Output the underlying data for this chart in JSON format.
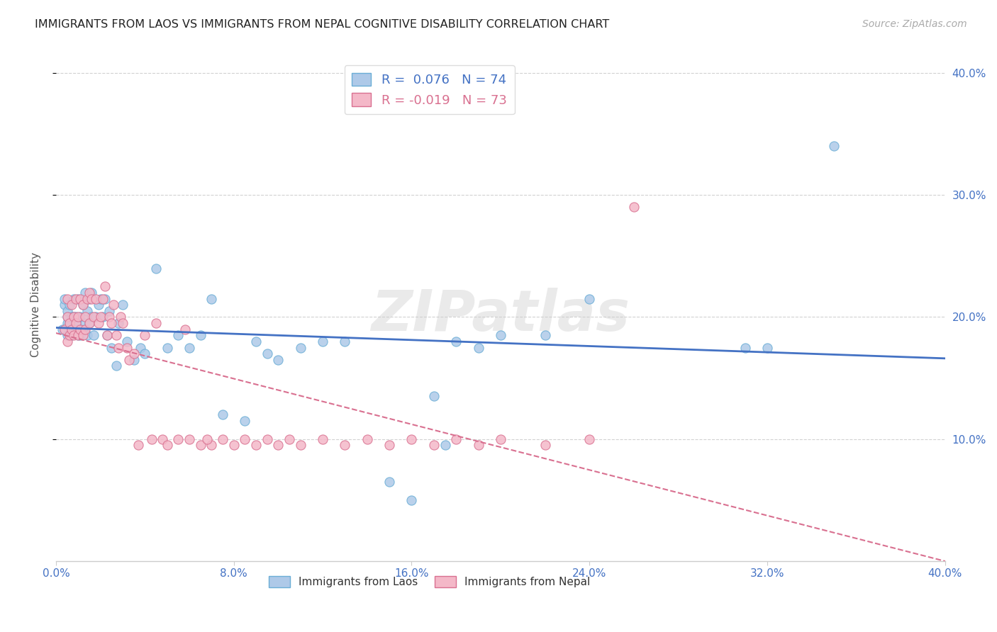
{
  "title": "IMMIGRANTS FROM LAOS VS IMMIGRANTS FROM NEPAL COGNITIVE DISABILITY CORRELATION CHART",
  "source": "Source: ZipAtlas.com",
  "ylabel": "Cognitive Disability",
  "xlim": [
    0.0,
    0.4
  ],
  "ylim": [
    0.0,
    0.42
  ],
  "laos_color": "#aec9e8",
  "laos_color_dark": "#6baed6",
  "nepal_color": "#f4b8c8",
  "nepal_color_dark": "#d97090",
  "laos_line_color": "#4472c4",
  "nepal_line_color": "#d97090",
  "R_laos": 0.076,
  "N_laos": 74,
  "R_nepal": -0.019,
  "N_nepal": 73,
  "laos_x": [
    0.003,
    0.004,
    0.004,
    0.005,
    0.005,
    0.005,
    0.005,
    0.006,
    0.006,
    0.007,
    0.007,
    0.008,
    0.008,
    0.008,
    0.009,
    0.009,
    0.009,
    0.01,
    0.01,
    0.01,
    0.011,
    0.011,
    0.012,
    0.012,
    0.013,
    0.013,
    0.014,
    0.014,
    0.015,
    0.015,
    0.016,
    0.016,
    0.017,
    0.018,
    0.019,
    0.02,
    0.021,
    0.022,
    0.023,
    0.024,
    0.025,
    0.027,
    0.028,
    0.03,
    0.032,
    0.035,
    0.038,
    0.04,
    0.045,
    0.05,
    0.055,
    0.06,
    0.065,
    0.07,
    0.075,
    0.085,
    0.09,
    0.095,
    0.1,
    0.11,
    0.12,
    0.13,
    0.15,
    0.16,
    0.175,
    0.2,
    0.22,
    0.24,
    0.31,
    0.32,
    0.35,
    0.17,
    0.18,
    0.19
  ],
  "laos_y": [
    0.19,
    0.21,
    0.215,
    0.195,
    0.2,
    0.185,
    0.205,
    0.195,
    0.21,
    0.185,
    0.2,
    0.19,
    0.2,
    0.215,
    0.19,
    0.195,
    0.2,
    0.185,
    0.19,
    0.215,
    0.185,
    0.2,
    0.21,
    0.19,
    0.195,
    0.22,
    0.185,
    0.205,
    0.215,
    0.195,
    0.2,
    0.22,
    0.185,
    0.2,
    0.21,
    0.215,
    0.2,
    0.215,
    0.185,
    0.205,
    0.175,
    0.16,
    0.195,
    0.21,
    0.18,
    0.165,
    0.175,
    0.17,
    0.24,
    0.175,
    0.185,
    0.175,
    0.185,
    0.215,
    0.12,
    0.115,
    0.18,
    0.17,
    0.165,
    0.175,
    0.18,
    0.18,
    0.065,
    0.05,
    0.095,
    0.185,
    0.185,
    0.215,
    0.175,
    0.175,
    0.34,
    0.135,
    0.18,
    0.175
  ],
  "nepal_x": [
    0.004,
    0.005,
    0.005,
    0.005,
    0.006,
    0.006,
    0.007,
    0.007,
    0.008,
    0.008,
    0.009,
    0.009,
    0.01,
    0.01,
    0.011,
    0.011,
    0.012,
    0.012,
    0.013,
    0.013,
    0.014,
    0.015,
    0.015,
    0.016,
    0.017,
    0.018,
    0.019,
    0.02,
    0.021,
    0.022,
    0.023,
    0.024,
    0.025,
    0.026,
    0.027,
    0.028,
    0.029,
    0.03,
    0.032,
    0.033,
    0.035,
    0.037,
    0.04,
    0.043,
    0.045,
    0.048,
    0.05,
    0.055,
    0.06,
    0.065,
    0.07,
    0.075,
    0.08,
    0.085,
    0.09,
    0.095,
    0.1,
    0.11,
    0.12,
    0.13,
    0.14,
    0.15,
    0.16,
    0.17,
    0.18,
    0.19,
    0.2,
    0.22,
    0.24,
    0.26,
    0.058,
    0.068,
    0.105
  ],
  "nepal_y": [
    0.19,
    0.215,
    0.18,
    0.2,
    0.185,
    0.195,
    0.19,
    0.21,
    0.185,
    0.2,
    0.195,
    0.215,
    0.185,
    0.2,
    0.19,
    0.215,
    0.185,
    0.21,
    0.19,
    0.2,
    0.215,
    0.195,
    0.22,
    0.215,
    0.2,
    0.215,
    0.195,
    0.2,
    0.215,
    0.225,
    0.185,
    0.2,
    0.195,
    0.21,
    0.185,
    0.175,
    0.2,
    0.195,
    0.175,
    0.165,
    0.17,
    0.095,
    0.185,
    0.1,
    0.195,
    0.1,
    0.095,
    0.1,
    0.1,
    0.095,
    0.095,
    0.1,
    0.095,
    0.1,
    0.095,
    0.1,
    0.095,
    0.095,
    0.1,
    0.095,
    0.1,
    0.095,
    0.1,
    0.095,
    0.1,
    0.095,
    0.1,
    0.095,
    0.1,
    0.29,
    0.19,
    0.1,
    0.1
  ],
  "watermark": "ZIPatlas",
  "background_color": "#ffffff",
  "grid_color": "#cccccc"
}
